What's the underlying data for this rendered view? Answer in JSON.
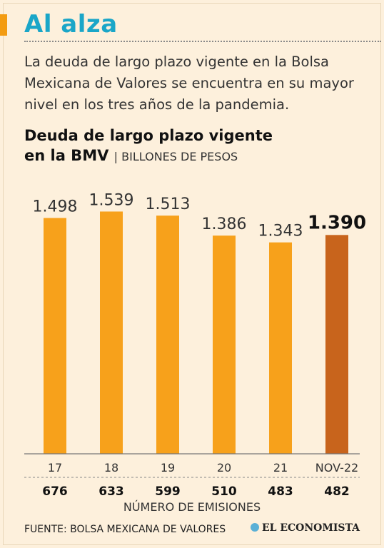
{
  "header": {
    "title": "Al alza",
    "intro": "La deuda de largo plazo vigente en la Bolsa Mexicana de Valores se encuentra en su mayor nivel en los tres años de la pandemia."
  },
  "chart_title": {
    "line1": "Deuda de largo plazo vigente",
    "line2": "en la BMV",
    "unit": "BILLONES DE PESOS"
  },
  "chart_data": {
    "type": "bar",
    "title": "Deuda de largo plazo vigente en la BMV",
    "ylabel": "BILLONES DE PESOS",
    "categories": [
      "17",
      "18",
      "19",
      "20",
      "21",
      "NOV-22"
    ],
    "values": [
      1.498,
      1.539,
      1.513,
      1.386,
      1.343,
      1.39
    ],
    "value_labels": [
      "1.498",
      "1.539",
      "1.513",
      "1.386",
      "1.343",
      "1.390"
    ],
    "highlight_index": 5,
    "ylim": [
      0,
      1.6
    ],
    "secondary_row": {
      "label": "NÚMERO DE EMISIONES",
      "values": [
        "676",
        "633",
        "599",
        "510",
        "483",
        "482"
      ]
    },
    "colors": {
      "bar": "#f7a11b",
      "highlight": "#c8641c"
    }
  },
  "footer": {
    "source": "FUENTE: BOLSA MEXICANA DE VALORES",
    "brand": "EL ECONOMISTA"
  }
}
